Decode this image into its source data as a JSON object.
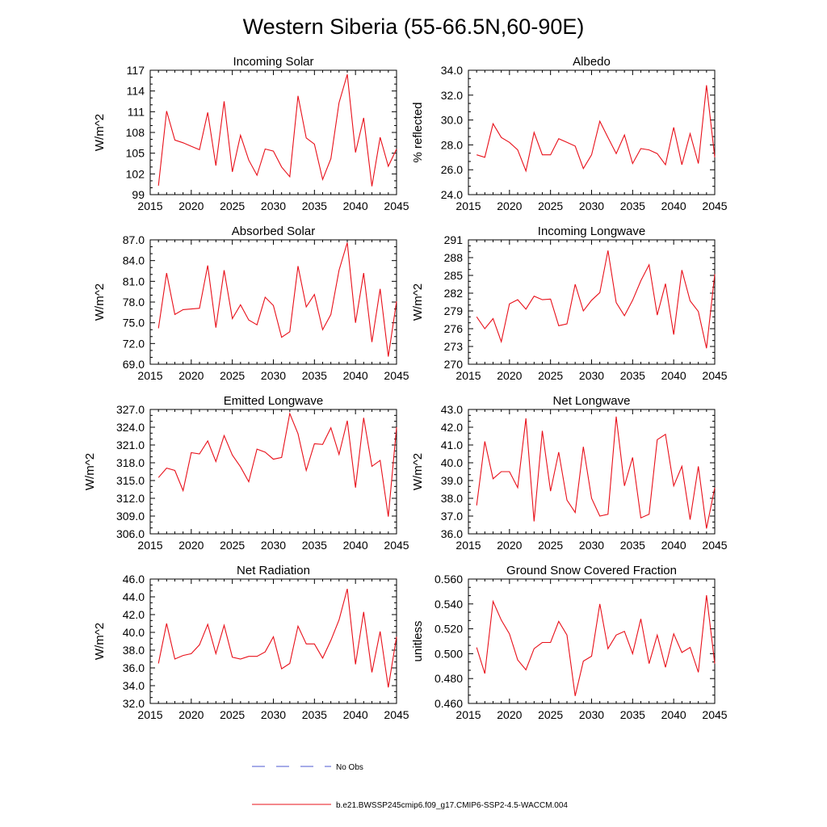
{
  "title": "Western Siberia (55-66.5N,60-90E)",
  "colors": {
    "series": "#e8101a",
    "obs": "#4d5ad1",
    "frame": "#000000"
  },
  "legend": {
    "obs_label": "No Obs",
    "model_label": "b.e21.BWSSP245cmip6.f09_g17.CMIP6-SSP2-4.5-WACCM.004"
  },
  "chart_data": [
    {
      "type": "line",
      "title": "Incoming Solar",
      "ylabel": "W/m^2",
      "xlim": [
        2015,
        2045
      ],
      "ylim": [
        99,
        117
      ],
      "xticks": [
        2015,
        2020,
        2025,
        2030,
        2035,
        2040,
        2045
      ],
      "yticks": [
        99,
        102,
        105,
        108,
        111,
        114,
        117
      ],
      "ytick_labels": [
        "99",
        "102",
        "105",
        "108",
        "111",
        "114",
        "117"
      ],
      "x": [
        2016,
        2017,
        2018,
        2019,
        2020,
        2021,
        2022,
        2023,
        2024,
        2025,
        2026,
        2027,
        2028,
        2029,
        2030,
        2031,
        2032,
        2033,
        2034,
        2035,
        2036,
        2037,
        2038,
        2039,
        2040,
        2041,
        2042,
        2043,
        2044,
        2045
      ],
      "values": [
        100.3,
        111.1,
        106.9,
        106.5,
        106.0,
        105.5,
        110.9,
        103.2,
        112.5,
        102.3,
        107.6,
        104.0,
        101.8,
        105.6,
        105.3,
        103.0,
        101.6,
        113.3,
        107.2,
        106.3,
        101.2,
        104.2,
        112.3,
        116.4,
        105.1,
        110.1,
        100.2,
        107.3,
        103.1,
        105.6
      ]
    },
    {
      "type": "line",
      "title": "Albedo",
      "ylabel": "% reflected",
      "xlim": [
        2015,
        2045
      ],
      "ylim": [
        24,
        34
      ],
      "xticks": [
        2015,
        2020,
        2025,
        2030,
        2035,
        2040,
        2045
      ],
      "yticks": [
        24,
        26,
        28,
        30,
        32,
        34
      ],
      "ytick_labels": [
        "24.0",
        "26.0",
        "28.0",
        "30.0",
        "32.0",
        "34.0"
      ],
      "x": [
        2016,
        2017,
        2018,
        2019,
        2020,
        2021,
        2022,
        2023,
        2024,
        2025,
        2026,
        2027,
        2028,
        2029,
        2030,
        2031,
        2032,
        2033,
        2034,
        2035,
        2036,
        2037,
        2038,
        2039,
        2040,
        2041,
        2042,
        2043,
        2044,
        2045
      ],
      "values": [
        27.2,
        27.0,
        29.7,
        28.6,
        28.2,
        27.6,
        25.9,
        29.0,
        27.2,
        27.2,
        28.5,
        28.2,
        27.9,
        26.1,
        27.2,
        29.9,
        28.6,
        27.3,
        28.8,
        26.5,
        27.7,
        27.6,
        27.3,
        26.4,
        29.4,
        26.4,
        28.9,
        26.5,
        32.8,
        27.0
      ]
    },
    {
      "type": "line",
      "title": "Absorbed Solar",
      "ylabel": "W/m^2",
      "xlim": [
        2015,
        2045
      ],
      "ylim": [
        69,
        87
      ],
      "xticks": [
        2015,
        2020,
        2025,
        2030,
        2035,
        2040,
        2045
      ],
      "yticks": [
        69,
        72,
        75,
        78,
        81,
        84,
        87
      ],
      "ytick_labels": [
        "69.0",
        "72.0",
        "75.0",
        "78.0",
        "81.0",
        "84.0",
        "87.0"
      ],
      "x": [
        2016,
        2017,
        2018,
        2019,
        2020,
        2021,
        2022,
        2023,
        2024,
        2025,
        2026,
        2027,
        2028,
        2029,
        2030,
        2031,
        2032,
        2033,
        2034,
        2035,
        2036,
        2037,
        2038,
        2039,
        2040,
        2041,
        2042,
        2043,
        2044,
        2045
      ],
      "values": [
        74.2,
        82.2,
        76.2,
        76.9,
        77.0,
        77.1,
        83.3,
        74.3,
        82.6,
        75.6,
        77.6,
        75.4,
        74.7,
        78.7,
        77.5,
        72.9,
        73.7,
        83.2,
        77.3,
        79.1,
        74.0,
        76.2,
        82.6,
        86.6,
        75.0,
        82.2,
        72.2,
        79.9,
        70.1,
        78.1
      ]
    },
    {
      "type": "line",
      "title": "Incoming Longwave",
      "ylabel": "W/m^2",
      "xlim": [
        2015,
        2045
      ],
      "ylim": [
        270,
        291
      ],
      "xticks": [
        2015,
        2020,
        2025,
        2030,
        2035,
        2040,
        2045
      ],
      "yticks": [
        270,
        273,
        276,
        279,
        282,
        285,
        288,
        291
      ],
      "ytick_labels": [
        "270",
        "273",
        "276",
        "279",
        "282",
        "285",
        "288",
        "291"
      ],
      "x": [
        2016,
        2017,
        2018,
        2019,
        2020,
        2021,
        2022,
        2023,
        2024,
        2025,
        2026,
        2027,
        2028,
        2029,
        2030,
        2031,
        2032,
        2033,
        2034,
        2035,
        2036,
        2037,
        2038,
        2039,
        2040,
        2041,
        2042,
        2043,
        2044,
        2045
      ],
      "values": [
        278.0,
        276.0,
        277.7,
        273.8,
        280.2,
        280.9,
        279.3,
        281.5,
        280.9,
        281.0,
        276.5,
        276.8,
        283.5,
        279.0,
        280.8,
        282.1,
        289.2,
        280.4,
        278.2,
        280.8,
        284.1,
        286.8,
        278.3,
        283.6,
        275.0,
        285.9,
        280.7,
        278.9,
        272.7,
        285.2
      ]
    },
    {
      "type": "line",
      "title": "Emitted Longwave",
      "ylabel": "W/m^2",
      "xlim": [
        2015,
        2045
      ],
      "ylim": [
        306,
        327
      ],
      "xticks": [
        2015,
        2020,
        2025,
        2030,
        2035,
        2040,
        2045
      ],
      "yticks": [
        306,
        309,
        312,
        315,
        318,
        321,
        324,
        327
      ],
      "ytick_labels": [
        "306.0",
        "309.0",
        "312.0",
        "315.0",
        "318.0",
        "321.0",
        "324.0",
        "327.0"
      ],
      "x": [
        2016,
        2017,
        2018,
        2019,
        2020,
        2021,
        2022,
        2023,
        2024,
        2025,
        2026,
        2027,
        2028,
        2029,
        2030,
        2031,
        2032,
        2033,
        2034,
        2035,
        2036,
        2037,
        2038,
        2039,
        2040,
        2041,
        2042,
        2043,
        2044,
        2045
      ],
      "values": [
        315.5,
        317.1,
        316.7,
        313.3,
        319.7,
        319.5,
        321.7,
        318.2,
        322.6,
        319.3,
        317.3,
        314.8,
        320.3,
        319.8,
        318.6,
        318.9,
        326.3,
        322.9,
        316.7,
        321.2,
        321.1,
        323.9,
        319.4,
        325.1,
        313.8,
        325.6,
        317.4,
        318.4,
        308.9,
        324.0
      ]
    },
    {
      "type": "line",
      "title": "Net Longwave",
      "ylabel": "W/m^2",
      "xlim": [
        2015,
        2045
      ],
      "ylim": [
        36,
        43
      ],
      "xticks": [
        2015,
        2020,
        2025,
        2030,
        2035,
        2040,
        2045
      ],
      "yticks": [
        36,
        37,
        38,
        39,
        40,
        41,
        42,
        43
      ],
      "ytick_labels": [
        "36.0",
        "37.0",
        "38.0",
        "39.0",
        "40.0",
        "41.0",
        "42.0",
        "43.0"
      ],
      "x": [
        2016,
        2017,
        2018,
        2019,
        2020,
        2021,
        2022,
        2023,
        2024,
        2025,
        2026,
        2027,
        2028,
        2029,
        2030,
        2031,
        2032,
        2033,
        2034,
        2035,
        2036,
        2037,
        2038,
        2039,
        2040,
        2041,
        2042,
        2043,
        2044,
        2045
      ],
      "values": [
        37.6,
        41.2,
        39.1,
        39.5,
        39.5,
        38.6,
        42.5,
        36.7,
        41.8,
        38.4,
        40.6,
        37.9,
        37.2,
        40.9,
        38.0,
        37.0,
        37.1,
        42.6,
        38.7,
        40.3,
        36.9,
        37.1,
        41.3,
        41.6,
        38.7,
        39.8,
        36.8,
        39.8,
        36.3,
        38.6
      ]
    },
    {
      "type": "line",
      "title": "Net Radiation",
      "ylabel": "W/m^2",
      "xlim": [
        2015,
        2045
      ],
      "ylim": [
        32,
        46
      ],
      "xticks": [
        2015,
        2020,
        2025,
        2030,
        2035,
        2040,
        2045
      ],
      "yticks": [
        32,
        34,
        36,
        38,
        40,
        42,
        44,
        46
      ],
      "ytick_labels": [
        "32.0",
        "34.0",
        "36.0",
        "38.0",
        "40.0",
        "42.0",
        "44.0",
        "46.0"
      ],
      "x": [
        2016,
        2017,
        2018,
        2019,
        2020,
        2021,
        2022,
        2023,
        2024,
        2025,
        2026,
        2027,
        2028,
        2029,
        2030,
        2031,
        2032,
        2033,
        2034,
        2035,
        2036,
        2037,
        2038,
        2039,
        2040,
        2041,
        2042,
        2043,
        2044,
        2045
      ],
      "values": [
        36.5,
        41.0,
        37.0,
        37.4,
        37.6,
        38.6,
        40.9,
        37.6,
        40.8,
        37.2,
        37.0,
        37.3,
        37.3,
        37.8,
        39.5,
        35.9,
        36.5,
        40.7,
        38.7,
        38.7,
        37.1,
        39.1,
        41.4,
        44.9,
        36.4,
        42.3,
        35.5,
        40.1,
        33.8,
        39.5
      ]
    },
    {
      "type": "line",
      "title": "Ground Snow Covered Fraction",
      "ylabel": "unitless",
      "xlim": [
        2015,
        2045
      ],
      "ylim": [
        0.46,
        0.56
      ],
      "xticks": [
        2015,
        2020,
        2025,
        2030,
        2035,
        2040,
        2045
      ],
      "yticks": [
        0.46,
        0.48,
        0.5,
        0.52,
        0.54,
        0.56
      ],
      "ytick_labels": [
        "0.460",
        "0.480",
        "0.500",
        "0.520",
        "0.540",
        "0.560"
      ],
      "x": [
        2016,
        2017,
        2018,
        2019,
        2020,
        2021,
        2022,
        2023,
        2024,
        2025,
        2026,
        2027,
        2028,
        2029,
        2030,
        2031,
        2032,
        2033,
        2034,
        2035,
        2036,
        2037,
        2038,
        2039,
        2040,
        2041,
        2042,
        2043,
        2044,
        2045
      ],
      "values": [
        0.505,
        0.484,
        0.542,
        0.527,
        0.516,
        0.495,
        0.487,
        0.504,
        0.509,
        0.509,
        0.526,
        0.515,
        0.466,
        0.494,
        0.498,
        0.54,
        0.504,
        0.515,
        0.518,
        0.5,
        0.528,
        0.492,
        0.515,
        0.489,
        0.516,
        0.501,
        0.505,
        0.485,
        0.547,
        0.492
      ]
    }
  ]
}
